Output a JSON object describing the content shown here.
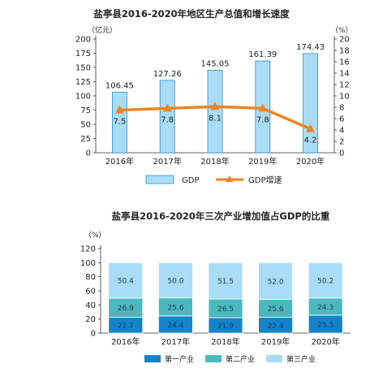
{
  "chart_data": [
    {
      "type": "bar",
      "title": "盐亭县2016-2020年地区生产总值和增长速度",
      "categories": [
        "2016年",
        "2017年",
        "2018年",
        "2019年",
        "2020年"
      ],
      "series": [
        {
          "name": "GDP",
          "type": "bar",
          "axis": "left",
          "values": [
            106.45,
            127.26,
            145.05,
            161.39,
            174.43
          ],
          "color": "#a9ddf7"
        },
        {
          "name": "GDP增速",
          "type": "line",
          "axis": "right",
          "values": [
            7.5,
            7.8,
            8.1,
            7.8,
            4.2
          ],
          "color": "#f0841f"
        }
      ],
      "ylabel_left": "（亿元）",
      "ylabel_right": "（%）",
      "ylim_left": [
        0,
        200
      ],
      "ylim_right": [
        0,
        20
      ],
      "yticks_left": [
        0,
        25,
        50,
        75,
        100,
        125,
        150,
        175,
        200
      ],
      "yticks_right": [
        0,
        2,
        4,
        6,
        8,
        10,
        12,
        14,
        16,
        18,
        20
      ],
      "legend": "bottom",
      "grid": false
    },
    {
      "type": "bar",
      "stacked": true,
      "title": "盐亭县2016-2020年三次产业增加值占GDP的比重",
      "categories": [
        "2016年",
        "2017年",
        "2018年",
        "2019年",
        "2020年"
      ],
      "series": [
        {
          "name": "第一产业",
          "values": [
            22.7,
            24.4,
            21.9,
            22.4,
            25.5
          ],
          "color": "#1583c9"
        },
        {
          "name": "第二产业",
          "values": [
            26.9,
            25.6,
            26.5,
            25.6,
            24.3
          ],
          "color": "#4bb8bf"
        },
        {
          "name": "第三产业",
          "values": [
            50.4,
            50.0,
            51.5,
            52.0,
            50.2
          ],
          "color": "#a9ddf7"
        }
      ],
      "ylabel": "（%）",
      "ylim": [
        0,
        120
      ],
      "yticks": [
        0,
        20,
        40,
        60,
        80,
        100,
        120
      ],
      "legend": "bottom",
      "grid": false
    }
  ]
}
